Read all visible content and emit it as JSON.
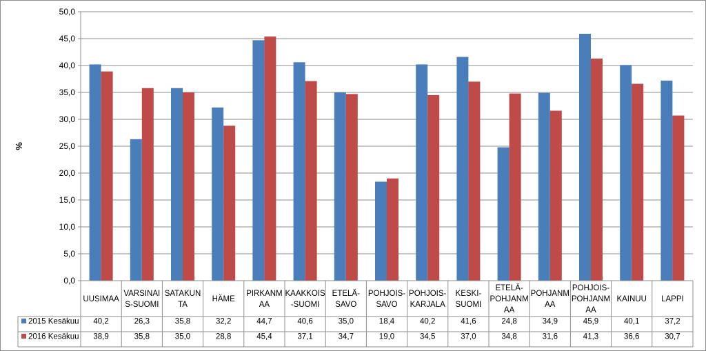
{
  "chart_data": {
    "type": "bar",
    "ylabel": "%",
    "ylim": [
      0,
      50
    ],
    "yticks": [
      "0,0",
      "5,0",
      "10,0",
      "15,0",
      "20,0",
      "25,0",
      "30,0",
      "35,0",
      "40,0",
      "45,0",
      "50,0"
    ],
    "grid": true,
    "legend": "data-table-left",
    "categories": [
      [
        "UUSIMAA"
      ],
      [
        "VARSINAI",
        "S-SUOMI"
      ],
      [
        "SATAKUN",
        "TA"
      ],
      [
        "HÄME"
      ],
      [
        "PIRKANM",
        "AA"
      ],
      [
        "KAAKKOIS",
        "-SUOMI"
      ],
      [
        "ETELÄ-",
        "SAVO"
      ],
      [
        "POHJOIS-",
        "SAVO"
      ],
      [
        "POHJOIS-",
        "KARJALA"
      ],
      [
        "KESKI-",
        "SUOMI"
      ],
      [
        "ETELÄ-",
        "POHJANM",
        "AA"
      ],
      [
        "POHJANM",
        "AA"
      ],
      [
        "POHJOIS-",
        "POHJANM",
        "AA"
      ],
      [
        "KAINUU"
      ],
      [
        "LAPPI"
      ]
    ],
    "series": [
      {
        "name": "2015 Kesäkuu",
        "color": "#4a7ebb",
        "values": [
          40.2,
          26.3,
          35.8,
          32.2,
          44.7,
          40.6,
          35.0,
          18.4,
          40.2,
          41.6,
          24.8,
          34.9,
          45.9,
          40.1,
          37.2
        ],
        "labels": [
          "40,2",
          "26,3",
          "35,8",
          "32,2",
          "44,7",
          "40,6",
          "35,0",
          "18,4",
          "40,2",
          "41,6",
          "24,8",
          "34,9",
          "45,9",
          "40,1",
          "37,2"
        ]
      },
      {
        "name": "2016 Kesäkuu",
        "color": "#be4b48",
        "values": [
          38.9,
          35.8,
          35.0,
          28.8,
          45.4,
          37.1,
          34.7,
          19.0,
          34.5,
          37.0,
          34.8,
          31.6,
          41.3,
          36.6,
          30.7
        ],
        "labels": [
          "38,9",
          "35,8",
          "35,0",
          "28,8",
          "45,4",
          "37,1",
          "34,7",
          "19,0",
          "34,5",
          "37,0",
          "34,8",
          "31,6",
          "41,3",
          "36,6",
          "30,7"
        ]
      }
    ]
  }
}
